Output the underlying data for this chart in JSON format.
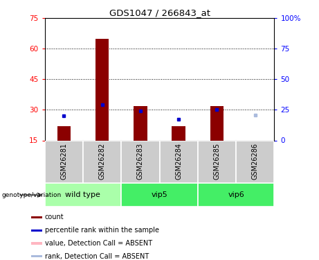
{
  "title": "GDS1047 / 266843_at",
  "samples": [
    "GSM26281",
    "GSM26282",
    "GSM26283",
    "GSM26284",
    "GSM26285",
    "GSM26286"
  ],
  "count_values": [
    22.0,
    65.0,
    32.0,
    22.0,
    32.0,
    15.0
  ],
  "rank_values": [
    27.0,
    32.5,
    29.5,
    25.5,
    30.0,
    27.5
  ],
  "absent_mask": [
    false,
    false,
    false,
    false,
    false,
    true
  ],
  "ymin": 15,
  "ymax": 75,
  "yticks_left": [
    15,
    30,
    45,
    60,
    75
  ],
  "yticks_right_vals": [
    0,
    25,
    50,
    75,
    100
  ],
  "yticks_right_labels": [
    "0",
    "25",
    "50",
    "75",
    "100%"
  ],
  "bar_color": "#8B0000",
  "rank_color": "#0000CC",
  "absent_bar_color": "#FFB6C1",
  "absent_rank_color": "#AABBDD",
  "bar_width": 0.35,
  "group_info": [
    {
      "start": 0,
      "end": 1,
      "label": "wild type",
      "color": "#AAFFAA"
    },
    {
      "start": 2,
      "end": 3,
      "label": "vip5",
      "color": "#44EE66"
    },
    {
      "start": 4,
      "end": 5,
      "label": "vip6",
      "color": "#44EE66"
    }
  ],
  "sample_box_color": "#CCCCCC",
  "legend_items": [
    {
      "label": "count",
      "color": "#8B0000"
    },
    {
      "label": "percentile rank within the sample",
      "color": "#0000CC"
    },
    {
      "label": "value, Detection Call = ABSENT",
      "color": "#FFB6C1"
    },
    {
      "label": "rank, Detection Call = ABSENT",
      "color": "#AABBDD"
    }
  ],
  "grid_dotted_at": [
    30,
    45,
    60
  ]
}
